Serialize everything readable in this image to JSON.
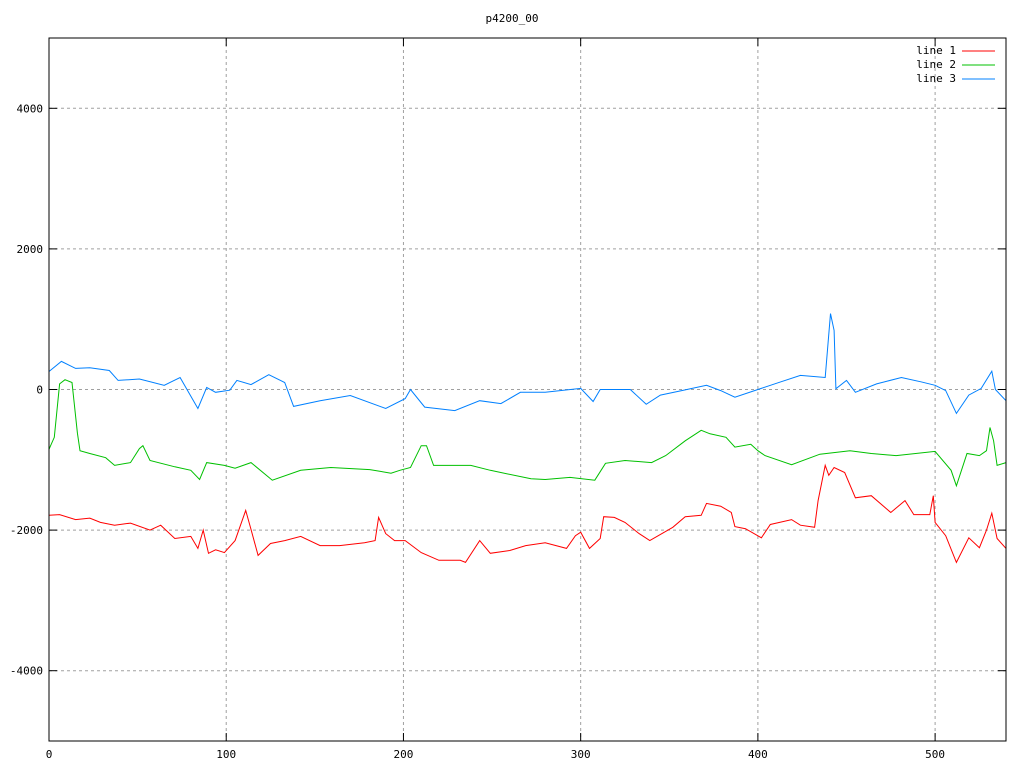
{
  "chart_data": {
    "type": "line",
    "title": "p4200_00",
    "xlabel": "",
    "ylabel": "",
    "xlim": [
      0,
      540
    ],
    "ylim": [
      -5000,
      5000
    ],
    "xticks": [
      0,
      100,
      200,
      300,
      400,
      500
    ],
    "yticks": [
      -4000,
      -2000,
      0,
      2000,
      4000
    ],
    "grid": true,
    "legend": "top-right",
    "series": [
      {
        "name": "line 1",
        "color": "#ff0000",
        "x": [
          0,
          6,
          15,
          23,
          29,
          37,
          46,
          57,
          63,
          71,
          80,
          84,
          87,
          90,
          94,
          99,
          105,
          111,
          114,
          118,
          125,
          133,
          142,
          153,
          164,
          178,
          184,
          186,
          190,
          195,
          201,
          210,
          220,
          232,
          235,
          243,
          249,
          260,
          269,
          280,
          292,
          297,
          300,
          305,
          311,
          313,
          319,
          325,
          333,
          339,
          352,
          359,
          368,
          371,
          379,
          385,
          387,
          393,
          402,
          407,
          419,
          424,
          432,
          434,
          438,
          440,
          443,
          449,
          455,
          464,
          475,
          483,
          488,
          497,
          499,
          500,
          506,
          512,
          519,
          525,
          529,
          532,
          535,
          540
        ],
        "y": [
          -1790,
          -1780,
          -1850,
          -1830,
          -1890,
          -1930,
          -1900,
          -2000,
          -1930,
          -2120,
          -2090,
          -2260,
          -2000,
          -2330,
          -2280,
          -2320,
          -2150,
          -1720,
          -1990,
          -2360,
          -2190,
          -2150,
          -2090,
          -2220,
          -2220,
          -2180,
          -2150,
          -1820,
          -2050,
          -2150,
          -2150,
          -2320,
          -2430,
          -2430,
          -2460,
          -2150,
          -2330,
          -2290,
          -2220,
          -2180,
          -2260,
          -2080,
          -2030,
          -2260,
          -2120,
          -1810,
          -1820,
          -1890,
          -2050,
          -2150,
          -1960,
          -1810,
          -1790,
          -1620,
          -1660,
          -1750,
          -1950,
          -1980,
          -2110,
          -1920,
          -1850,
          -1930,
          -1960,
          -1580,
          -1080,
          -1220,
          -1110,
          -1180,
          -1540,
          -1510,
          -1750,
          -1580,
          -1780,
          -1780,
          -1510,
          -1890,
          -2080,
          -2460,
          -2110,
          -2250,
          -2000,
          -1760,
          -2120,
          -2260
        ]
      },
      {
        "name": "line 2",
        "color": "#00c000",
        "x": [
          0,
          3,
          6,
          9,
          13,
          16,
          17.5,
          23,
          32,
          37,
          46,
          51,
          53,
          57,
          71,
          80,
          85,
          89,
          99,
          105,
          114,
          126,
          142,
          159,
          181,
          193,
          198,
          204,
          210,
          213,
          217,
          238,
          249,
          272,
          280,
          294,
          308,
          314,
          325,
          340,
          348,
          359,
          368,
          373,
          382,
          387,
          396,
          400,
          404,
          419,
          435,
          452,
          464,
          478,
          500,
          509,
          512,
          518,
          525,
          529,
          531,
          533,
          535,
          540
        ],
        "y": [
          -850,
          -680,
          80,
          140,
          100,
          -620,
          -870,
          -910,
          -970,
          -1080,
          -1040,
          -840,
          -800,
          -1010,
          -1100,
          -1150,
          -1280,
          -1040,
          -1080,
          -1120,
          -1040,
          -1290,
          -1150,
          -1110,
          -1140,
          -1190,
          -1150,
          -1110,
          -800,
          -800,
          -1080,
          -1080,
          -1150,
          -1270,
          -1280,
          -1250,
          -1290,
          -1050,
          -1010,
          -1040,
          -940,
          -730,
          -580,
          -630,
          -680,
          -820,
          -780,
          -870,
          -940,
          -1070,
          -920,
          -870,
          -910,
          -940,
          -880,
          -1150,
          -1370,
          -910,
          -940,
          -870,
          -540,
          -730,
          -1080,
          -1040
        ]
      },
      {
        "name": "line 3",
        "color": "#0080ff",
        "x": [
          0,
          7,
          15,
          23,
          34,
          39,
          51,
          65,
          74,
          84,
          89,
          94,
          102,
          106,
          114,
          124,
          133,
          138,
          153,
          170,
          190,
          201,
          204,
          212,
          229,
          243,
          255,
          266,
          280,
          300,
          307,
          311,
          328,
          337,
          345,
          357,
          371,
          379,
          387,
          400,
          413,
          424,
          438,
          441,
          443,
          444,
          450,
          455,
          467,
          481,
          492,
          500,
          506,
          512,
          519,
          526,
          532,
          534,
          540
        ],
        "y": [
          256,
          400,
          300,
          310,
          270,
          130,
          150,
          60,
          170,
          -270,
          30,
          -40,
          -10,
          130,
          70,
          210,
          100,
          -240,
          -160,
          -85,
          -270,
          -130,
          0,
          -250,
          -300,
          -160,
          -200,
          -40,
          -40,
          15,
          -170,
          0,
          0,
          -210,
          -80,
          -15,
          60,
          -15,
          -110,
          0,
          110,
          200,
          170,
          1080,
          840,
          10,
          130,
          -40,
          80,
          170,
          110,
          60,
          -15,
          -340,
          -80,
          15,
          260,
          0,
          -160
        ]
      }
    ]
  }
}
